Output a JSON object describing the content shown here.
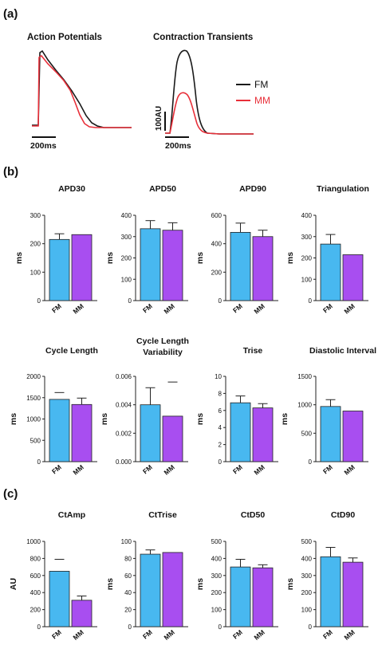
{
  "colors": {
    "fm": "#1a1a1a",
    "mm": "#e8303a",
    "bar_fm": "#48b8f0",
    "bar_mm": "#a84ef0",
    "axis": "#222222"
  },
  "panels": {
    "a": {
      "label": "(a)",
      "ap_title": "Action Potentials",
      "ct_title": "Contraction Transients",
      "ap_scale": "200ms",
      "ct_scale": "200ms",
      "ct_vscale": "100AU",
      "legend": [
        {
          "name": "FM",
          "color": "#1a1a1a"
        },
        {
          "name": "MM",
          "color": "#e8303a"
        }
      ]
    },
    "b": {
      "label": "(b)"
    },
    "c": {
      "label": "(c)"
    }
  },
  "chart_data": [
    {
      "type": "bar",
      "panel": "b",
      "title": "APD30",
      "ylabel": "ms",
      "categories": [
        "FM",
        "MM"
      ],
      "values": [
        215,
        232
      ],
      "error": [
        20,
        0
      ],
      "ylim": [
        0,
        300
      ],
      "yticks": [
        "0",
        "100",
        "200",
        "300"
      ]
    },
    {
      "type": "bar",
      "panel": "b",
      "title": "APD50",
      "ylabel": "ms",
      "categories": [
        "FM",
        "MM"
      ],
      "values": [
        337,
        330
      ],
      "error": [
        38,
        35
      ],
      "ylim": [
        0,
        400
      ],
      "yticks": [
        "0",
        "100",
        "200",
        "300",
        "400"
      ]
    },
    {
      "type": "bar",
      "panel": "b",
      "title": "APD90",
      "ylabel": "ms",
      "categories": [
        "FM",
        "MM"
      ],
      "values": [
        480,
        450
      ],
      "error": [
        65,
        45
      ],
      "ylim": [
        0,
        600
      ],
      "yticks": [
        "0",
        "200",
        "400",
        "600"
      ]
    },
    {
      "type": "bar",
      "panel": "b",
      "title": "Triangulation",
      "ylabel": "ms",
      "categories": [
        "FM",
        "MM"
      ],
      "values": [
        265,
        215
      ],
      "error": [
        45,
        0
      ],
      "ylim": [
        0,
        400
      ],
      "yticks": [
        "0",
        "100",
        "200",
        "300",
        "400"
      ]
    },
    {
      "type": "bar",
      "panel": "b",
      "title": "Cycle Length",
      "ylabel": "ms",
      "categories": [
        "FM",
        "MM"
      ],
      "values": [
        1460,
        1340
      ],
      "error": [
        0,
        150
      ],
      "marks": [
        1620,
        null
      ],
      "ylim": [
        0,
        2000
      ],
      "yticks": [
        "0",
        "500",
        "1000",
        "1500",
        "2000"
      ]
    },
    {
      "type": "bar",
      "panel": "b",
      "title": "Cycle Length",
      "title2": "Variability",
      "ylabel": "ms",
      "categories": [
        "FM",
        "MM"
      ],
      "values": [
        0.004,
        0.0032
      ],
      "error": [
        0.0012,
        0
      ],
      "marks": [
        null,
        0.0056
      ],
      "ylim": [
        0,
        0.006
      ],
      "yticks": [
        "0.000",
        "0.002",
        "0.004",
        "0.006"
      ]
    },
    {
      "type": "bar",
      "panel": "b",
      "title": "Trise",
      "ylabel": "ms",
      "categories": [
        "FM",
        "MM"
      ],
      "values": [
        6.9,
        6.3
      ],
      "error": [
        0.8,
        0.5
      ],
      "ylim": [
        0,
        10
      ],
      "yticks": [
        "0",
        "2",
        "4",
        "6",
        "8",
        "10"
      ]
    },
    {
      "type": "bar",
      "panel": "b",
      "title": "Diastolic Interval",
      "ylabel": "ms",
      "categories": [
        "FM",
        "MM"
      ],
      "values": [
        970,
        890
      ],
      "error": [
        120,
        0
      ],
      "ylim": [
        0,
        1500
      ],
      "yticks": [
        "0",
        "500",
        "1000",
        "1500"
      ]
    },
    {
      "type": "bar",
      "panel": "c",
      "title": "CtAmp",
      "ylabel": "AU",
      "categories": [
        "FM",
        "MM"
      ],
      "values": [
        650,
        310
      ],
      "error": [
        0,
        50
      ],
      "marks": [
        790,
        null
      ],
      "ylim": [
        0,
        1000
      ],
      "yticks": [
        "0",
        "200",
        "400",
        "600",
        "800",
        "1000"
      ]
    },
    {
      "type": "bar",
      "panel": "c",
      "title": "CtTrise",
      "ylabel": "ms",
      "categories": [
        "FM",
        "MM"
      ],
      "values": [
        85,
        87
      ],
      "error": [
        5,
        0
      ],
      "ylim": [
        0,
        100
      ],
      "yticks": [
        "0",
        "20",
        "40",
        "60",
        "80",
        "100"
      ]
    },
    {
      "type": "bar",
      "panel": "c",
      "title": "CtD50",
      "ylabel": "ms",
      "categories": [
        "FM",
        "MM"
      ],
      "values": [
        350,
        345
      ],
      "error": [
        45,
        18
      ],
      "ylim": [
        0,
        500
      ],
      "yticks": [
        "0",
        "100",
        "200",
        "300",
        "400",
        "500"
      ]
    },
    {
      "type": "bar",
      "panel": "c",
      "title": "CtD90",
      "ylabel": "ms",
      "categories": [
        "FM",
        "MM"
      ],
      "values": [
        410,
        378
      ],
      "error": [
        55,
        25
      ],
      "ylim": [
        0,
        500
      ],
      "yticks": [
        "0",
        "100",
        "200",
        "300",
        "400",
        "500"
      ]
    }
  ]
}
